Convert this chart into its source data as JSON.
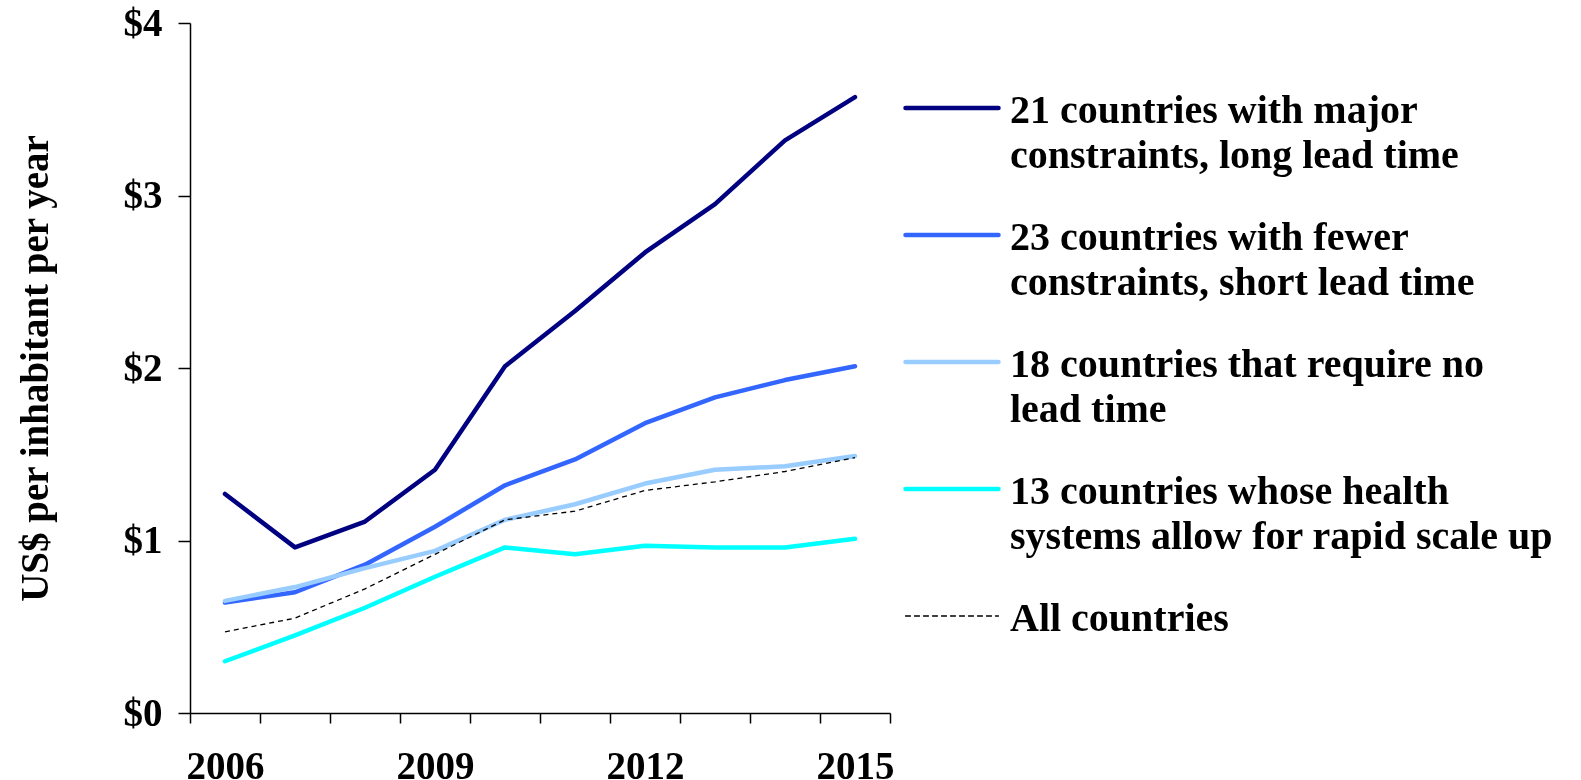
{
  "chart_data": {
    "type": "line",
    "ylabel": "US$ per inhabitant per year",
    "categories": [
      "2006",
      null,
      null,
      "2009",
      null,
      null,
      "2012",
      null,
      null,
      "2015"
    ],
    "ylim": [
      0,
      4
    ],
    "yticks": [
      {
        "value": 0,
        "label": "$0"
      },
      {
        "value": 1,
        "label": "$1"
      },
      {
        "value": 2,
        "label": "$2"
      },
      {
        "value": 3,
        "label": "$3"
      },
      {
        "value": 4,
        "label": "$4"
      }
    ],
    "legend": "right",
    "line_style": "solid",
    "series": [
      {
        "name": "21 countries with major constraints, long lead time",
        "color": "#000080",
        "values": [
          1.27,
          0.96,
          1.11,
          1.41,
          2.01,
          2.33,
          2.67,
          2.95,
          3.32,
          3.57
        ]
      },
      {
        "name": "23 countries with fewer constraints, short lead time",
        "color": "#3366ff",
        "values": [
          0.64,
          0.7,
          0.86,
          1.08,
          1.32,
          1.47,
          1.68,
          1.83,
          1.93,
          2.01
        ]
      },
      {
        "name": "18 countries that require no lead time",
        "color": "#99ccff",
        "values": [
          0.65,
          0.73,
          0.84,
          0.94,
          1.12,
          1.21,
          1.33,
          1.41,
          1.43,
          1.49
        ]
      },
      {
        "name": "13 countries whose health systems allow for rapid scale up",
        "color": "#00ffff",
        "values": [
          0.3,
          0.45,
          0.61,
          0.79,
          0.96,
          0.92,
          0.97,
          0.96,
          0.96,
          1.01
        ]
      },
      {
        "name": "All countries",
        "color": "#000000",
        "line_style": "dashed",
        "values": [
          0.47,
          0.55,
          0.72,
          0.92,
          1.12,
          1.17,
          1.29,
          1.34,
          1.4,
          1.48
        ]
      }
    ]
  }
}
